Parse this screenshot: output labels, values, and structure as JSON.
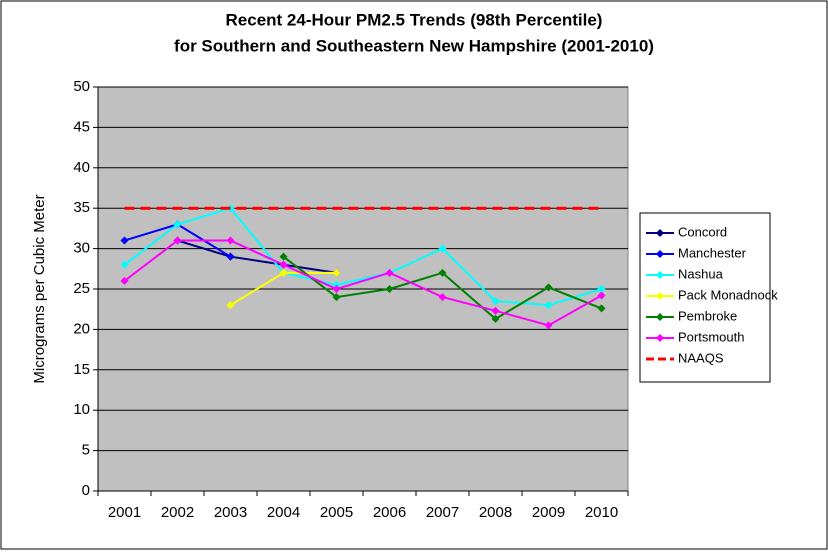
{
  "chart_data": {
    "type": "line",
    "title": [
      "Recent 24-Hour PM2.5 Trends (98th Percentile)",
      "for Southern and Southeastern New Hampshire (2001-2010)"
    ],
    "y_label": "Micrograms per Cubic Meter",
    "categories": [
      "2001",
      "2002",
      "2003",
      "2004",
      "2005",
      "2006",
      "2007",
      "2008",
      "2009",
      "2010"
    ],
    "series": [
      {
        "name": "Concord",
        "color": "#000080",
        "values": [
          null,
          31,
          29,
          28,
          27,
          null,
          null,
          null,
          null,
          null
        ]
      },
      {
        "name": "Manchester",
        "color": "#0000ff",
        "values": [
          31,
          33,
          29,
          null,
          null,
          null,
          null,
          null,
          null,
          null
        ]
      },
      {
        "name": "Nashua",
        "color": "#00ffff",
        "values": [
          28,
          33,
          35,
          27,
          25.5,
          27,
          30,
          23.5,
          23,
          25
        ]
      },
      {
        "name": "Pack Monadnock",
        "color": "#ffff00",
        "values": [
          null,
          null,
          23,
          27,
          27,
          null,
          null,
          null,
          null,
          null
        ]
      },
      {
        "name": "Pembroke",
        "color": "#008000",
        "values": [
          null,
          null,
          null,
          29,
          24,
          25,
          27,
          21.3,
          25.2,
          22.6
        ]
      },
      {
        "name": "Portsmouth",
        "color": "#ff00ff",
        "values": [
          26,
          31,
          31,
          28,
          25,
          27,
          24,
          22.3,
          20.5,
          24.2
        ]
      },
      {
        "name": "NAAQS",
        "color": "#ff0000",
        "dashed": true,
        "markers": false,
        "values": [
          35,
          35,
          35,
          35,
          35,
          35,
          35,
          35,
          35,
          35
        ]
      }
    ],
    "ylim": [
      0,
      50
    ],
    "yticks": [
      0,
      5,
      10,
      15,
      20,
      25,
      30,
      35,
      40,
      45,
      50
    ],
    "grid": true,
    "plot_background": "#c0c0c0",
    "legend": "right"
  }
}
